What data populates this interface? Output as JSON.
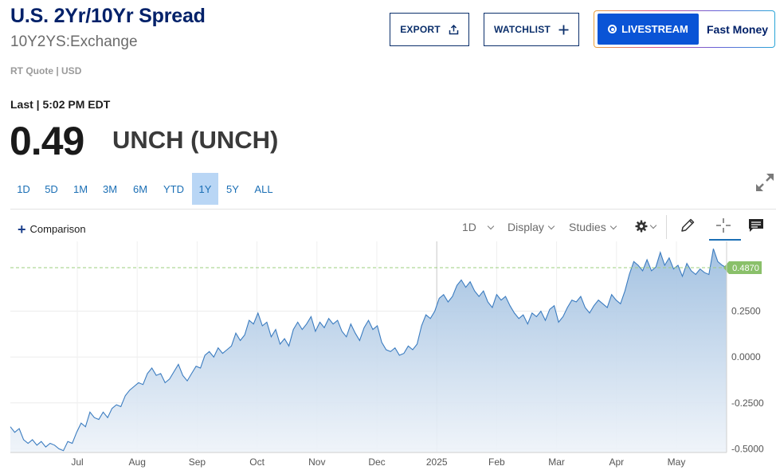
{
  "header": {
    "title": "U.S. 2Yr/10Yr Spread",
    "symbol": "10Y2YS:Exchange",
    "quote_meta": "RT Quote | USD"
  },
  "actions": {
    "export_label": "EXPORT",
    "watchlist_label": "WATCHLIST",
    "livestream_label": "LIVESTREAM",
    "livestream_show": "Fast Money"
  },
  "quote": {
    "last_label": "Last | 5:02 PM EDT",
    "last_value": "0.49",
    "change": "UNCH (UNCH)"
  },
  "ranges": [
    "1D",
    "5D",
    "1M",
    "3M",
    "6M",
    "YTD",
    "1Y",
    "5Y",
    "ALL"
  ],
  "active_range": "1Y",
  "toolbar": {
    "comparison": "Comparison",
    "interval": "1D",
    "display": "Display",
    "studies": "Studies"
  },
  "colors": {
    "brand": "#012169",
    "accent": "#1b6fb5",
    "line": "#3b7cc0",
    "price_tag": "#8ac06a",
    "live": "#0a54d6"
  },
  "icons": [
    "share-icon",
    "plus-icon",
    "live-dot-icon",
    "expand-icon",
    "gear-icon",
    "pencil-icon",
    "crosshair-icon",
    "comment-icon"
  ],
  "chart_data": {
    "type": "area",
    "x_labels": [
      "Jul",
      "Aug",
      "Sep",
      "Oct",
      "Nov",
      "Dec",
      "2025",
      "Feb",
      "Mar",
      "Apr",
      "May"
    ],
    "y_ticks": [
      "0.2500",
      "0.0000",
      "-0.2500",
      "-0.5000"
    ],
    "ylim": [
      -0.52,
      0.63
    ],
    "last_price_label": "0.4870",
    "last_price": 0.487,
    "grid": true,
    "series": [
      {
        "values": [
          -0.38,
          -0.41,
          -0.39,
          -0.45,
          -0.47,
          -0.45,
          -0.48,
          -0.46,
          -0.49,
          -0.47,
          -0.48,
          -0.5,
          -0.51,
          -0.46,
          -0.47,
          -0.41,
          -0.36,
          -0.38,
          -0.3,
          -0.33,
          -0.34,
          -0.3,
          -0.33,
          -0.28,
          -0.26,
          -0.27,
          -0.21,
          -0.18,
          -0.16,
          -0.14,
          -0.15,
          -0.09,
          -0.06,
          -0.1,
          -0.09,
          -0.14,
          -0.12,
          -0.08,
          -0.04,
          -0.1,
          -0.13,
          -0.09,
          -0.05,
          -0.06,
          0.01,
          0.03,
          0.0,
          0.05,
          0.02,
          0.04,
          0.06,
          0.13,
          0.09,
          0.12,
          0.2,
          0.18,
          0.24,
          0.17,
          0.19,
          0.11,
          0.15,
          0.07,
          0.1,
          0.06,
          0.15,
          0.19,
          0.15,
          0.18,
          0.22,
          0.14,
          0.19,
          0.16,
          0.21,
          0.18,
          0.2,
          0.14,
          0.11,
          0.18,
          0.13,
          0.09,
          0.16,
          0.2,
          0.15,
          0.17,
          0.08,
          0.04,
          0.03,
          0.05,
          0.01,
          0.02,
          0.06,
          0.04,
          0.07,
          0.17,
          0.23,
          0.21,
          0.25,
          0.32,
          0.34,
          0.3,
          0.33,
          0.39,
          0.42,
          0.38,
          0.41,
          0.36,
          0.33,
          0.36,
          0.3,
          0.27,
          0.34,
          0.31,
          0.33,
          0.28,
          0.24,
          0.21,
          0.23,
          0.18,
          0.24,
          0.22,
          0.25,
          0.2,
          0.26,
          0.28,
          0.19,
          0.22,
          0.27,
          0.31,
          0.3,
          0.33,
          0.27,
          0.24,
          0.28,
          0.31,
          0.29,
          0.27,
          0.34,
          0.31,
          0.29,
          0.36,
          0.45,
          0.52,
          0.5,
          0.47,
          0.53,
          0.47,
          0.49,
          0.57,
          0.5,
          0.54,
          0.48,
          0.5,
          0.44,
          0.51,
          0.47,
          0.45,
          0.48,
          0.46,
          0.45,
          0.59,
          0.52,
          0.5,
          0.487
        ]
      }
    ]
  }
}
